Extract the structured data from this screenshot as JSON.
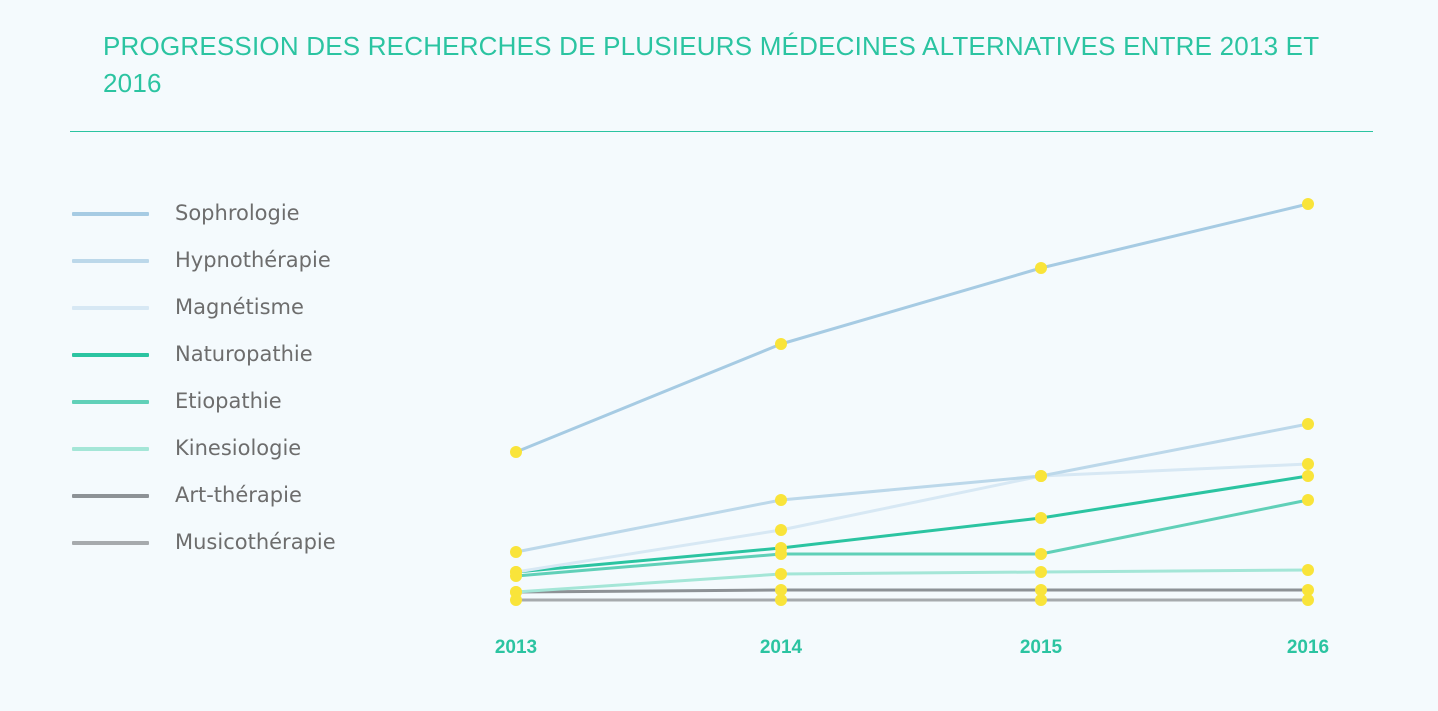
{
  "chart_data": {
    "type": "line",
    "title": "PROGRESSION DES RECHERCHES DE PLUSIEURS MÉDECINES ALTERNATIVES ENTRE 2013 ET 2016",
    "categories": [
      "2013",
      "2014",
      "2015",
      "2016"
    ],
    "ylim": [
      0,
      100
    ],
    "grid": false,
    "legend_position": "left",
    "marker_color": "#f9e43a",
    "series": [
      {
        "name": "Sophrologie",
        "color": "#a6cbe3",
        "values": [
          37,
          64,
          83,
          99
        ]
      },
      {
        "name": "Hypnothérapie",
        "color": "#bcd8ea",
        "values": [
          12,
          25,
          31,
          44
        ]
      },
      {
        "name": "Magnétisme",
        "color": "#d7e8f4",
        "values": [
          7,
          17.5,
          31,
          34
        ]
      },
      {
        "name": "Naturopathie",
        "color": "#2bc4a1",
        "values": [
          7,
          13,
          20.5,
          31
        ]
      },
      {
        "name": "Etiopathie",
        "color": "#60d0b8",
        "values": [
          6,
          11.5,
          11.5,
          25
        ]
      },
      {
        "name": "Kinesiologie",
        "color": "#a4e6d7",
        "values": [
          2,
          6.5,
          7,
          7.5
        ]
      },
      {
        "name": "Art-thérapie",
        "color": "#8d9296",
        "values": [
          2,
          2.5,
          2.5,
          2.5
        ]
      },
      {
        "name": "Musicothérapie",
        "color": "#a6aaad",
        "values": [
          0,
          0,
          0,
          0
        ]
      }
    ]
  }
}
